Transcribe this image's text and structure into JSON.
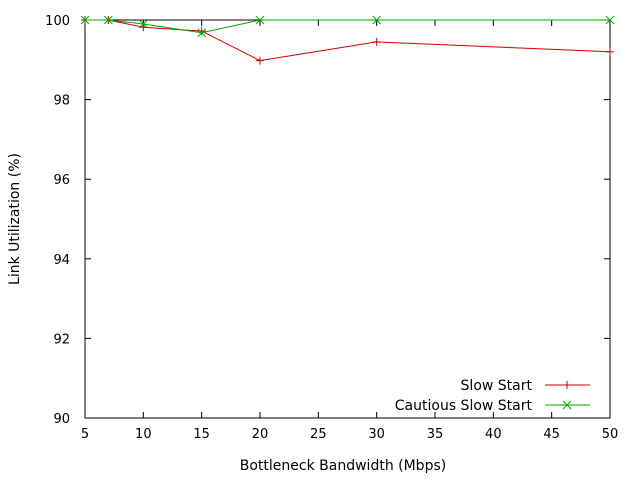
{
  "chart_data": {
    "type": "line",
    "title": "",
    "xlabel": "Bottleneck Bandwidth (Mbps)",
    "ylabel": "Link Utilization (%)",
    "xlim": [
      5,
      50
    ],
    "ylim": [
      90,
      100
    ],
    "xticks": [
      5,
      10,
      15,
      20,
      25,
      30,
      35,
      40,
      45,
      50
    ],
    "yticks": [
      90,
      92,
      94,
      96,
      98,
      100
    ],
    "grid": false,
    "legend_position": "bottom-right",
    "series": [
      {
        "name": "Slow Start",
        "color": "#cc0000",
        "marker": "plus",
        "x": [
          5,
          7,
          10,
          15,
          20,
          30,
          50
        ],
        "y": [
          100.0,
          100.0,
          99.82,
          99.72,
          98.98,
          99.45,
          99.2
        ]
      },
      {
        "name": "Cautious  Slow Start",
        "color": "#00aa00",
        "marker": "cross",
        "x": [
          5,
          7,
          10,
          15,
          20,
          30,
          50
        ],
        "y": [
          100.0,
          100.0,
          99.9,
          99.68,
          100.0,
          100.0,
          100.0
        ]
      }
    ]
  }
}
